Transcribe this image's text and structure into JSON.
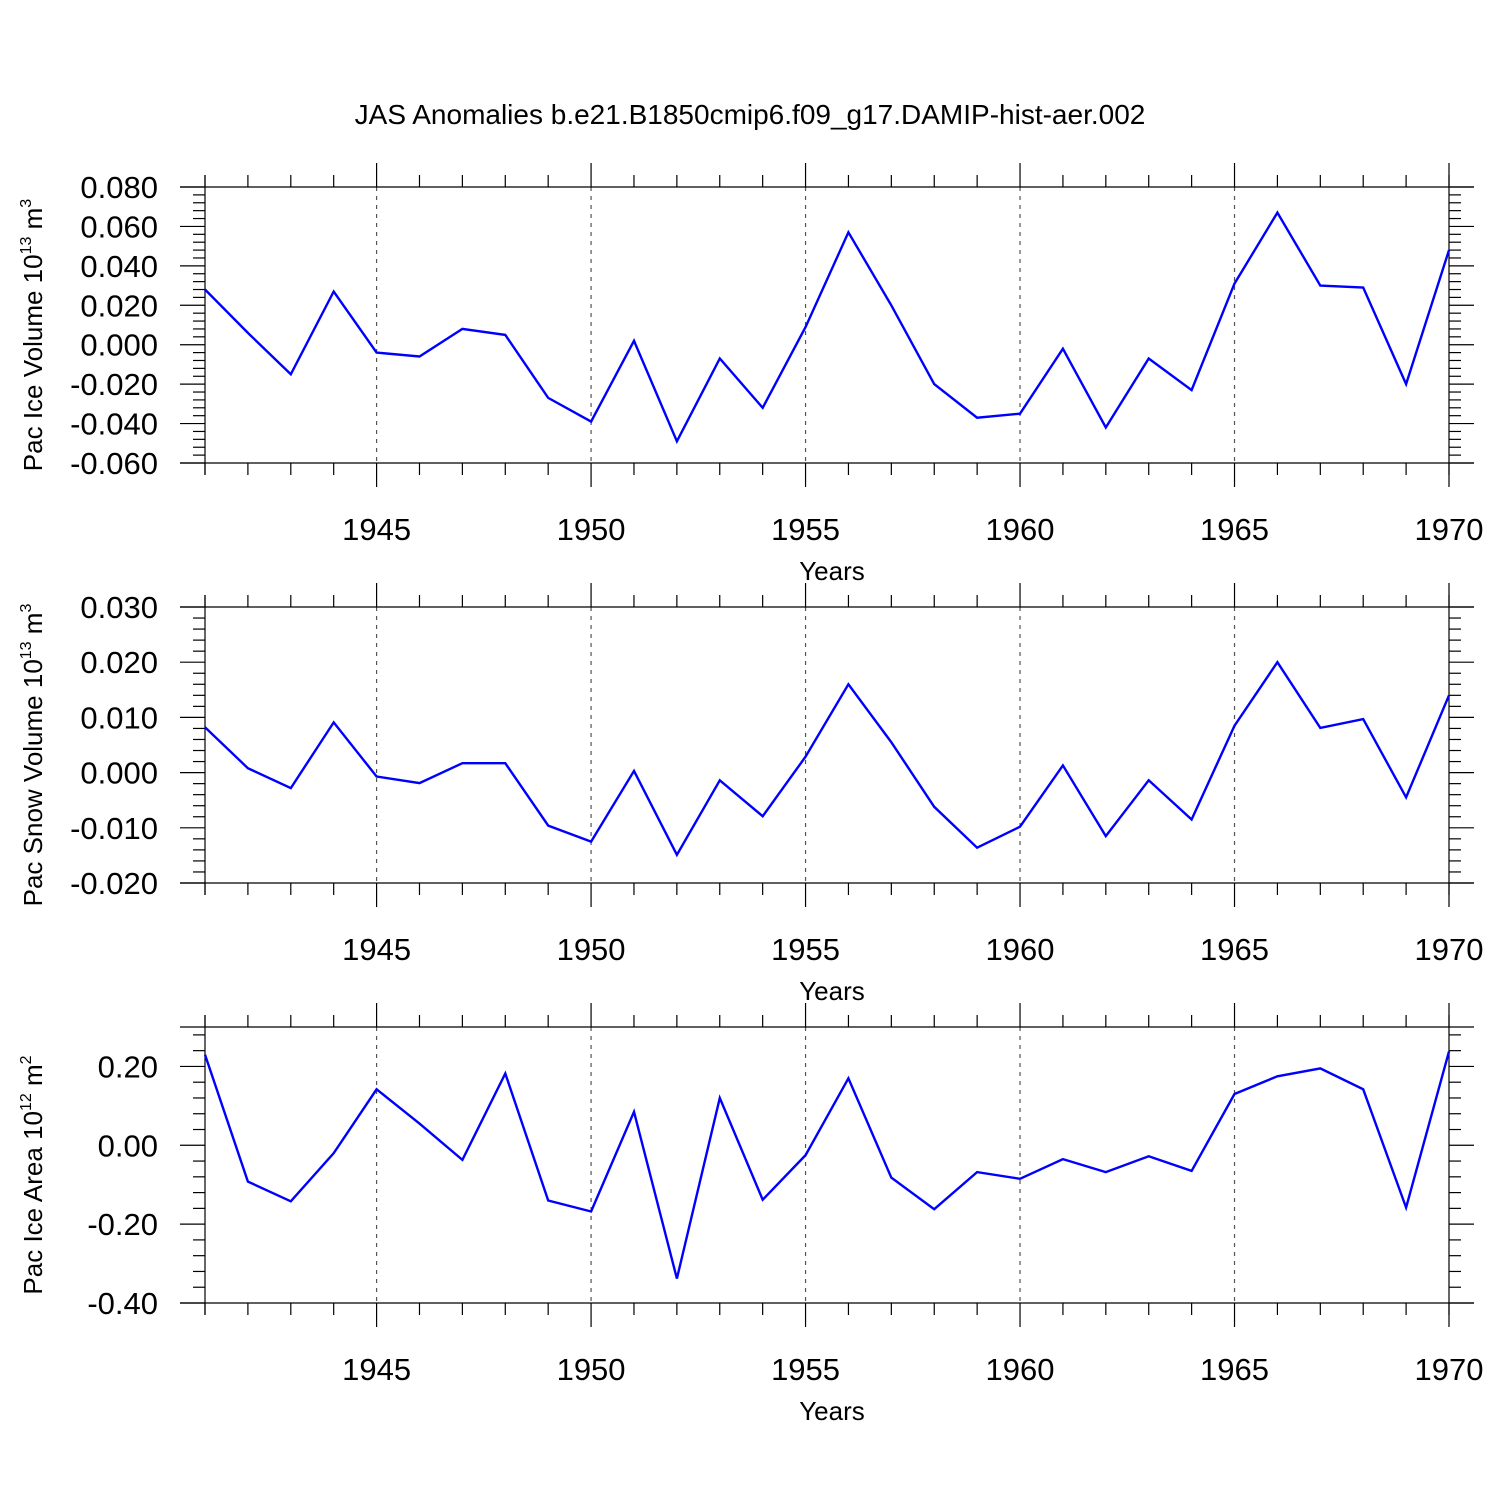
{
  "title": "JAS Anomalies b.e21.B1850cmip6.f09_g17.DAMIP-hist-aer.002",
  "colors": {
    "line": "#0000ff",
    "axis": "#000000",
    "grid": "#555555"
  },
  "chart_data": [
    {
      "type": "line",
      "ylabel": "Pac Ice Volume 10",
      "ylabel_exp": "13",
      "ylabel_unit": " m",
      "ylabel_unit_exp": "3",
      "xlabel": "Years",
      "xlim": [
        1941,
        1970
      ],
      "ylim": [
        -0.06,
        0.08
      ],
      "yticks": [
        -0.06,
        -0.04,
        -0.02,
        0.0,
        0.02,
        0.04,
        0.06,
        0.08
      ],
      "ytick_labels": [
        "-0.060",
        "-0.040",
        "-0.020",
        "0.000",
        "0.020",
        "0.040",
        "0.060",
        "0.080"
      ],
      "xticks": [
        1945,
        1950,
        1955,
        1960,
        1965,
        1970
      ],
      "xtick_labels": [
        "1945",
        "1950",
        "1955",
        "1960",
        "1965",
        "1970"
      ],
      "grid": "x dashed at major ticks",
      "x": [
        1941,
        1942,
        1943,
        1944,
        1945,
        1946,
        1947,
        1948,
        1949,
        1950,
        1951,
        1952,
        1953,
        1954,
        1955,
        1956,
        1957,
        1958,
        1959,
        1960,
        1961,
        1962,
        1963,
        1964,
        1965,
        1966,
        1967,
        1968,
        1969,
        1970
      ],
      "values": [
        0.028,
        0.006,
        -0.015,
        0.027,
        -0.004,
        -0.006,
        0.008,
        0.005,
        -0.027,
        -0.039,
        0.002,
        -0.049,
        -0.007,
        -0.032,
        0.009,
        0.057,
        0.02,
        -0.02,
        -0.037,
        -0.035,
        -0.002,
        -0.042,
        -0.007,
        -0.023,
        0.031,
        0.067,
        0.03,
        0.029,
        -0.02,
        0.048
      ]
    },
    {
      "type": "line",
      "ylabel": "Pac Snow Volume 10",
      "ylabel_exp": "13",
      "ylabel_unit": " m",
      "ylabel_unit_exp": "3",
      "xlabel": "Years",
      "xlim": [
        1941,
        1970
      ],
      "ylim": [
        -0.02,
        0.03
      ],
      "yticks": [
        -0.02,
        -0.01,
        0.0,
        0.01,
        0.02,
        0.03
      ],
      "ytick_labels": [
        "-0.020",
        "-0.010",
        "0.000",
        "0.010",
        "0.020",
        "0.030"
      ],
      "xticks": [
        1945,
        1950,
        1955,
        1960,
        1965,
        1970
      ],
      "xtick_labels": [
        "1945",
        "1950",
        "1955",
        "1960",
        "1965",
        "1970"
      ],
      "grid": "x dashed at major ticks",
      "x": [
        1941,
        1942,
        1943,
        1944,
        1945,
        1946,
        1947,
        1948,
        1949,
        1950,
        1951,
        1952,
        1953,
        1954,
        1955,
        1956,
        1957,
        1958,
        1959,
        1960,
        1961,
        1962,
        1963,
        1964,
        1965,
        1966,
        1967,
        1968,
        1969,
        1970
      ],
      "values": [
        0.0082,
        0.0008,
        -0.0028,
        0.0091,
        -0.0007,
        -0.0019,
        0.0017,
        0.0017,
        -0.0096,
        -0.0125,
        0.0003,
        -0.0149,
        -0.0014,
        -0.0079,
        0.0029,
        0.016,
        0.0055,
        -0.0062,
        -0.0136,
        -0.0098,
        0.0013,
        -0.0115,
        -0.0014,
        -0.0085,
        0.0085,
        0.02,
        0.0081,
        0.0097,
        -0.0045,
        0.014
      ]
    },
    {
      "type": "line",
      "ylabel": "Pac Ice Area 10",
      "ylabel_exp": "12",
      "ylabel_unit": " m",
      "ylabel_unit_exp": "2",
      "xlabel": "Years",
      "xlim": [
        1941,
        1970
      ],
      "ylim": [
        -0.4,
        0.3
      ],
      "yticks": [
        -0.4,
        -0.2,
        0.0,
        0.2
      ],
      "ytick_labels": [
        "-0.40",
        "-0.20",
        "0.00",
        "0.20"
      ],
      "xticks": [
        1945,
        1950,
        1955,
        1960,
        1965,
        1970
      ],
      "xtick_labels": [
        "1945",
        "1950",
        "1955",
        "1960",
        "1965",
        "1970"
      ],
      "grid": "x dashed at major ticks",
      "x": [
        1941,
        1942,
        1943,
        1944,
        1945,
        1946,
        1947,
        1948,
        1949,
        1950,
        1951,
        1952,
        1953,
        1954,
        1955,
        1956,
        1957,
        1958,
        1959,
        1960,
        1961,
        1962,
        1963,
        1964,
        1965,
        1966,
        1967,
        1968,
        1969,
        1970
      ],
      "values": [
        0.23,
        -0.092,
        -0.142,
        -0.02,
        0.142,
        0.055,
        -0.037,
        0.182,
        -0.14,
        -0.168,
        0.085,
        -0.338,
        0.12,
        -0.138,
        -0.025,
        0.17,
        -0.082,
        -0.162,
        -0.068,
        -0.085,
        -0.035,
        -0.068,
        -0.028,
        -0.065,
        0.13,
        0.175,
        0.195,
        0.142,
        -0.158,
        0.238
      ]
    }
  ]
}
